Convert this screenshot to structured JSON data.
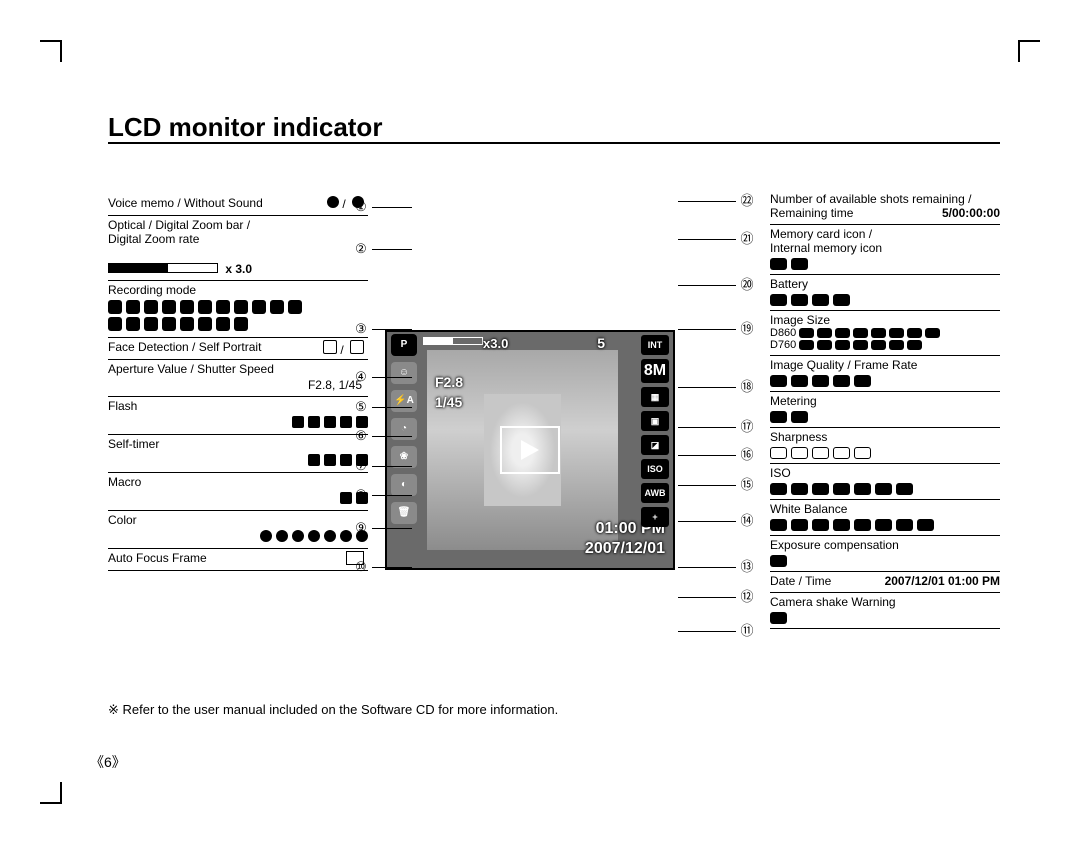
{
  "page": {
    "title": "LCD monitor indicator",
    "footnote": "※ Refer to the user manual included on the Software CD for more information.",
    "pagenum": "《6》"
  },
  "left": [
    {
      "n": "①",
      "label": "Voice memo / Without Sound",
      "sub_icons": 2
    },
    {
      "n": "②",
      "label": "Optical / Digital Zoom bar /\nDigital Zoom rate",
      "zoombar": true,
      "zoom_value": "x 3.0"
    },
    {
      "n": "③",
      "label": "Recording mode",
      "icons_rows": [
        11,
        8
      ]
    },
    {
      "n": "④",
      "label": "Face Detection / Self Portrait",
      "trailing_icons": 2
    },
    {
      "n": "⑤",
      "label": "Aperture Value / Shutter Speed",
      "value": "F2.8, 1/45"
    },
    {
      "n": "⑥",
      "label": "Flash",
      "icons": 5
    },
    {
      "n": "⑦",
      "label": "Self-timer",
      "icons": 4
    },
    {
      "n": "⑧",
      "label": "Macro",
      "icons": 2
    },
    {
      "n": "⑨",
      "label": "Color",
      "icons": 7
    },
    {
      "n": "⑩",
      "label": "Auto Focus Frame",
      "icon_outline": true
    }
  ],
  "right": [
    {
      "n": "㉒",
      "label": "Number of available shots remaining /\nRemaining time",
      "value": "5/00:00:00"
    },
    {
      "n": "㉑",
      "label": "Memory card icon /\nInternal memory icon",
      "icons": 2
    },
    {
      "n": "⑳",
      "label": "Battery",
      "icons": 4
    },
    {
      "n": "⑲",
      "label_line1": "Image Size",
      "label_line2a": "D860",
      "icons_a": 8,
      "label_line2b": "D760",
      "icons_b": 7
    },
    {
      "n": "⑱",
      "label": "Image Quality / Frame Rate",
      "icons": 5
    },
    {
      "n": "⑰",
      "label": "Metering",
      "icons": 2
    },
    {
      "n": "⑯",
      "label": "Sharpness",
      "icons": 5
    },
    {
      "n": "⑮",
      "label": "ISO",
      "icons": 7
    },
    {
      "n": "⑭",
      "label": "White Balance",
      "icons": 8
    },
    {
      "n": "⑬",
      "label": "Exposure compensation",
      "icons": 1
    },
    {
      "n": "⑫",
      "label": "Date / Time",
      "value": "2007/12/01  01:00 PM"
    },
    {
      "n": "⑪",
      "label": "Camera shake Warning",
      "icons": 1
    }
  ],
  "lcd": {
    "aperture": "F2.8",
    "shutter": "1/45",
    "zoom": "x3.0",
    "shots": "5",
    "time": "01:00 PM",
    "date": "2007/12/01",
    "right_icons": [
      "INT",
      "8M",
      "▦",
      "▣",
      "◪",
      "ISO",
      "AWB",
      "+"
    ]
  }
}
